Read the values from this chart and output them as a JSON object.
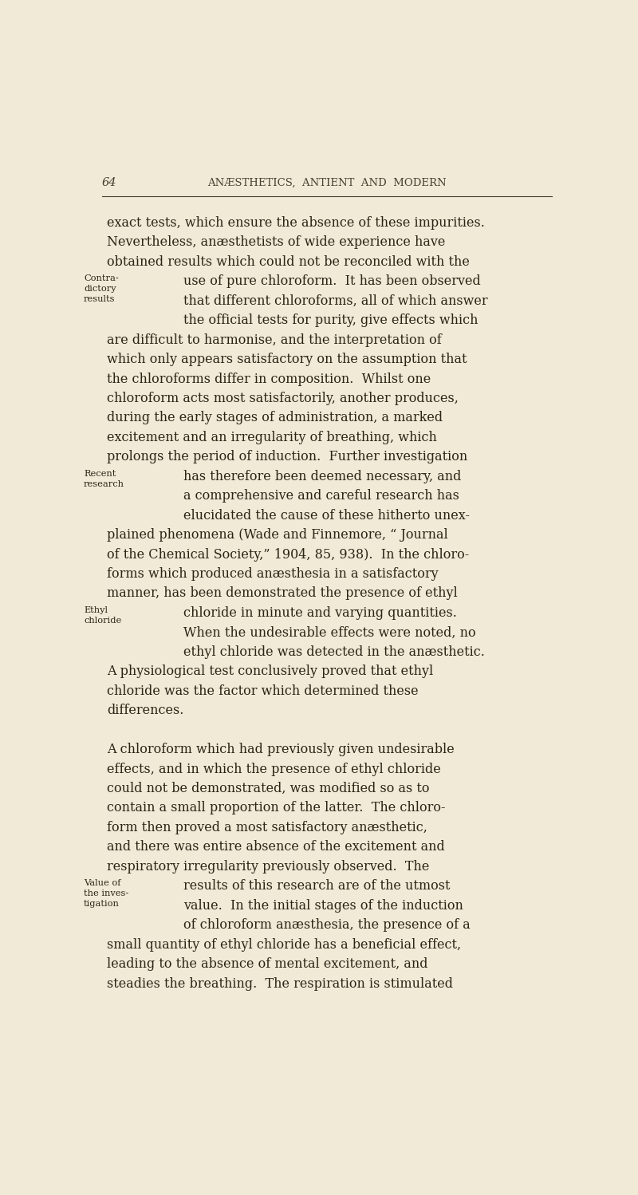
{
  "bg_color": "#f0ead6",
  "text_color": "#2c2416",
  "header_color": "#4a3f30",
  "page_number": "64",
  "header_title": "ANÆSTHETICS,  ANTIENT  AND  MODERN",
  "main_text": [
    {
      "text": "exact tests, which ensure the absence of these impurities.",
      "indent": false
    },
    {
      "text": "Nevertheless, anæsthetists of wide experience have",
      "indent": false
    },
    {
      "text": "obtained results which could not be reconciled with the",
      "indent": false
    },
    {
      "text": "use of pure chloroform.  It has been observed",
      "indent": true
    },
    {
      "text": "that different chloroforms, all of which answer",
      "indent": true
    },
    {
      "text": "the official tests for purity, give effects which",
      "indent": true
    },
    {
      "text": "are difficult to harmonise, and the interpretation of",
      "indent": false
    },
    {
      "text": "which only appears satisfactory on the assumption that",
      "indent": false
    },
    {
      "text": "the chloroforms differ in composition.  Whilst one",
      "indent": false
    },
    {
      "text": "chloroform acts most satisfactorily, another produces,",
      "indent": false
    },
    {
      "text": "during the early stages of administration, a marked",
      "indent": false
    },
    {
      "text": "excitement and an irregularity of breathing, which",
      "indent": false
    },
    {
      "text": "prolongs the period of induction.  Further investigation",
      "indent": false
    },
    {
      "text": "has therefore been deemed necessary, and",
      "indent": true
    },
    {
      "text": "a comprehensive and careful research has",
      "indent": true
    },
    {
      "text": "elucidated the cause of these hitherto unex-",
      "indent": true
    },
    {
      "text": "plained phenomena (Wade and Finnemore, “ Journal",
      "indent": false
    },
    {
      "text": "of the Chemical Society,” 1904, 85, 938).  In the chloro-",
      "indent": false
    },
    {
      "text": "forms which produced anæsthesia in a satisfactory",
      "indent": false
    },
    {
      "text": "manner, has been demonstrated the presence of ethyl",
      "indent": false
    },
    {
      "text": "chloride in minute and varying quantities.",
      "indent": true
    },
    {
      "text": "When the undesirable effects were noted, no",
      "indent": true
    },
    {
      "text": "ethyl chloride was detected in the anæsthetic.",
      "indent": true
    },
    {
      "text": "A physiological test conclusively proved that ethyl",
      "indent": false
    },
    {
      "text": "chloride was the factor which determined these",
      "indent": false
    },
    {
      "text": "differences.",
      "indent": false
    },
    {
      "text": "",
      "indent": false
    },
    {
      "text": "  A chloroform which had previously given undesirable",
      "indent": false
    },
    {
      "text": "effects, and in which the presence of ethyl chloride",
      "indent": false
    },
    {
      "text": "could not be demonstrated, was modified so as to",
      "indent": false
    },
    {
      "text": "contain a small proportion of the latter.  The chloro-",
      "indent": false
    },
    {
      "text": "form then proved a most satisfactory anæsthetic,",
      "indent": false
    },
    {
      "text": "and there was entire absence of the excitement and",
      "indent": false
    },
    {
      "text": "respiratory irregularity previously observed.  The",
      "indent": false
    },
    {
      "text": "results of this research are of the utmost",
      "indent": true
    },
    {
      "text": "value.  In the initial stages of the induction",
      "indent": true
    },
    {
      "text": "of chloroform anæsthesia, the presence of a",
      "indent": true
    },
    {
      "text": "small quantity of ethyl chloride has a beneficial effect,",
      "indent": false
    },
    {
      "text": "leading to the absence of mental excitement, and",
      "indent": false
    },
    {
      "text": "steadies the breathing.  The respiration is stimulated",
      "indent": false
    }
  ],
  "margin_labels": [
    {
      "text": "Contra-\ndictory\nresults",
      "line_index": 3
    },
    {
      "text": "Recent\nresearch",
      "line_index": 13
    },
    {
      "text": "Ethyl\nchloride",
      "line_index": 20
    },
    {
      "text": "Value of\nthe inves-\ntigation",
      "line_index": 34
    }
  ]
}
